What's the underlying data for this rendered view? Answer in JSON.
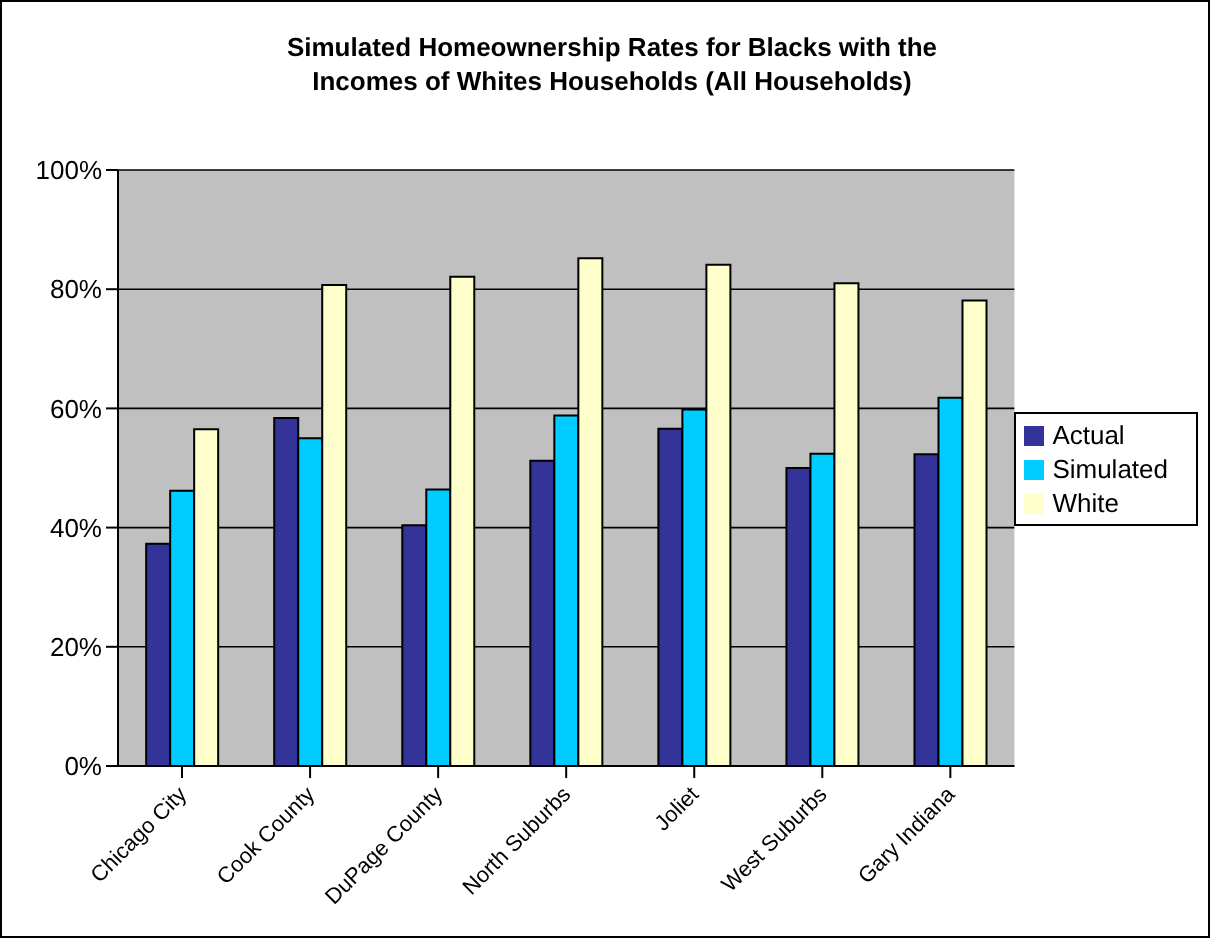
{
  "chart_data": {
    "type": "bar",
    "title": "Simulated Homeownership Rates for Blacks with the Incomes of Whites Households (All Households)",
    "categories": [
      "Chicago City",
      "Cook County",
      "DuPage County",
      "North Suburbs",
      "Joliet",
      "West Suburbs",
      "Gary Indiana"
    ],
    "series": [
      {
        "name": "Actual",
        "color": "#333399",
        "values": [
          37.3,
          58.4,
          40.4,
          51.2,
          56.6,
          50.0,
          52.3
        ]
      },
      {
        "name": "Simulated",
        "color": "#00ccff",
        "values": [
          46.2,
          55.0,
          46.4,
          58.8,
          59.8,
          52.4,
          61.8
        ]
      },
      {
        "name": "White",
        "color": "#ffffcc",
        "values": [
          56.5,
          80.7,
          82.1,
          85.2,
          84.1,
          81.0,
          78.1
        ]
      }
    ],
    "ylim": [
      0,
      100
    ],
    "yticks": [
      {
        "value": 0,
        "label": "0%"
      },
      {
        "value": 20,
        "label": "20%"
      },
      {
        "value": 40,
        "label": "40%"
      },
      {
        "value": 60,
        "label": "60%"
      },
      {
        "value": 80,
        "label": "80%"
      },
      {
        "value": 100,
        "label": "100%"
      }
    ],
    "grid": "y",
    "legend": "right"
  }
}
